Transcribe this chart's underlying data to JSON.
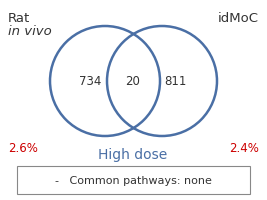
{
  "title_left": "Rat",
  "title_left_italic": "in vivo",
  "title_right": "idMoC",
  "left_value": "734",
  "center_value": "20",
  "right_value": "811",
  "left_pct": "2.6%",
  "right_pct": "2.4%",
  "subtitle": "High dose",
  "legend_text": "-   Common pathways: none",
  "circle_color": "#4a6fa5",
  "circle_linewidth": 1.8,
  "text_color_numbers": "#333333",
  "text_color_pct": "#cc0000",
  "text_color_title": "#333333",
  "text_color_subtitle": "#4a6fa5",
  "background_color": "#ffffff"
}
